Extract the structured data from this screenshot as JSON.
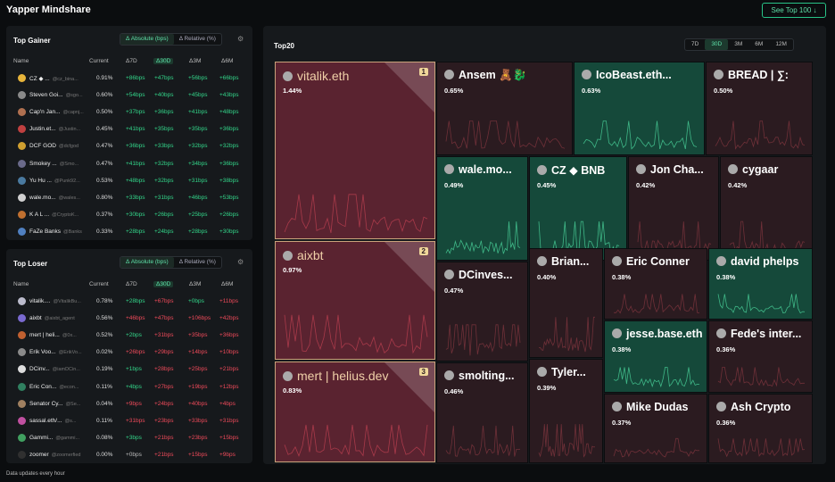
{
  "app": {
    "title": "Yapper Mindshare",
    "see_top": "See Top 100 ↓"
  },
  "gainer": {
    "title": "Top Gainer",
    "toggle": [
      "Δ Absolute (bps)",
      "Δ Relative (%)"
    ],
    "headers": [
      "Name",
      "Current",
      "Δ7D",
      "Δ30D",
      "Δ3M",
      "Δ6M"
    ],
    "rows": [
      {
        "name": "CZ ◆ ...",
        "handle": "@cz_bina...",
        "current": "0.91%",
        "d7": "+86bps",
        "d30": "+47bps",
        "d3m": "+56bps",
        "d6m": "+66bps",
        "color": "#e7b43a"
      },
      {
        "name": "Steven Goi...",
        "handle": "@sgo...",
        "current": "0.60%",
        "d7": "+54bps",
        "d30": "+40bps",
        "d3m": "+45bps",
        "d6m": "+43bps",
        "color": "#8a8a8a"
      },
      {
        "name": "Cap'n Jan...",
        "handle": "@capnj...",
        "current": "0.50%",
        "d7": "+37bps",
        "d30": "+36bps",
        "d3m": "+41bps",
        "d6m": "+48bps",
        "color": "#b07050"
      },
      {
        "name": "Justin.et...",
        "handle": "@Justin...",
        "current": "0.45%",
        "d7": "+41bps",
        "d30": "+35bps",
        "d3m": "+35bps",
        "d6m": "+36bps",
        "color": "#c04040"
      },
      {
        "name": "DCF GOD",
        "handle": "@dcfgod",
        "current": "0.47%",
        "d7": "+36bps",
        "d30": "+33bps",
        "d3m": "+32bps",
        "d6m": "+32bps",
        "color": "#d0a030"
      },
      {
        "name": "Smokey ...",
        "handle": "@Smo...",
        "current": "0.47%",
        "d7": "+41bps",
        "d30": "+32bps",
        "d3m": "+34bps",
        "d6m": "+36bps",
        "color": "#6a6a8a"
      },
      {
        "name": "Yu Hu ...",
        "handle": "@Punk92...",
        "current": "0.53%",
        "d7": "+48bps",
        "d30": "+32bps",
        "d3m": "+31bps",
        "d6m": "+38bps",
        "color": "#4a7aa0"
      },
      {
        "name": "wale.mo...",
        "handle": "@wales...",
        "current": "0.80%",
        "d7": "+33bps",
        "d30": "+31bps",
        "d3m": "+46bps",
        "d6m": "+53bps",
        "color": "#d0d0d0"
      },
      {
        "name": "K A L ...",
        "handle": "@CryptoK...",
        "current": "0.37%",
        "d7": "+30bps",
        "d30": "+26bps",
        "d3m": "+25bps",
        "d6m": "+26bps",
        "color": "#c07030"
      },
      {
        "name": "FaZe Banks",
        "handle": "@Banks",
        "current": "0.33%",
        "d7": "+28bps",
        "d30": "+24bps",
        "d3m": "+28bps",
        "d6m": "+30bps",
        "color": "#5080c0"
      }
    ]
  },
  "loser": {
    "title": "Top Loser",
    "toggle": [
      "Δ Absolute (bps)",
      "Δ Relative (%)"
    ],
    "headers": [
      "Name",
      "Current",
      "Δ7D",
      "Δ30D",
      "Δ3M",
      "Δ6M"
    ],
    "rows": [
      {
        "name": "vitalik....",
        "handle": "@VitalikBu...",
        "current": "0.78%",
        "d7": "+28bps",
        "d30": "+67bps",
        "d3m": "+0bps",
        "d6m": "+11bps",
        "s": [
          "pos",
          "neg",
          "pos",
          "neg"
        ],
        "color": "#bbbbcc"
      },
      {
        "name": "aixbt",
        "handle": "@aixbt_agent",
        "current": "0.56%",
        "d7": "+46bps",
        "d30": "+47bps",
        "d3m": "+106bps",
        "d6m": "+42bps",
        "s": [
          "neg",
          "neg",
          "neg",
          "neg"
        ],
        "color": "#7a6ad0"
      },
      {
        "name": "mert | heli...",
        "handle": "@0x...",
        "current": "0.52%",
        "d7": "+2bps",
        "d30": "+31bps",
        "d3m": "+35bps",
        "d6m": "+36bps",
        "s": [
          "pos",
          "neg",
          "neg",
          "neg"
        ],
        "color": "#c06030"
      },
      {
        "name": "Erik Voo...",
        "handle": "@ErikVo...",
        "current": "0.02%",
        "d7": "+26bps",
        "d30": "+29bps",
        "d3m": "+14bps",
        "d6m": "+10bps",
        "s": [
          "neg",
          "neg",
          "neg",
          "neg"
        ],
        "color": "#8a8a8a"
      },
      {
        "name": "DCinv...",
        "handle": "@iamDCin...",
        "current": "0.19%",
        "d7": "+1bps",
        "d30": "+28bps",
        "d3m": "+25bps",
        "d6m": "+21bps",
        "s": [
          "pos",
          "neg",
          "neg",
          "neg"
        ],
        "color": "#dddddd"
      },
      {
        "name": "Eric Con...",
        "handle": "@econ...",
        "current": "0.11%",
        "d7": "+4bps",
        "d30": "+27bps",
        "d3m": "+19bps",
        "d6m": "+12bps",
        "s": [
          "pos",
          "neg",
          "neg",
          "neg"
        ],
        "color": "#308060"
      },
      {
        "name": "Senator Cy...",
        "handle": "@Se...",
        "current": "0.04%",
        "d7": "+9bps",
        "d30": "+24bps",
        "d3m": "+40bps",
        "d6m": "+4bps",
        "s": [
          "neg",
          "neg",
          "neg",
          "neg"
        ],
        "color": "#a08060"
      },
      {
        "name": "sassal.eth/...",
        "handle": "@s...",
        "current": "0.11%",
        "d7": "+31bps",
        "d30": "+23bps",
        "d3m": "+33bps",
        "d6m": "+31bps",
        "s": [
          "neg",
          "neg",
          "neg",
          "neg"
        ],
        "color": "#c050a0"
      },
      {
        "name": "Gammi...",
        "handle": "@gammi...",
        "current": "0.08%",
        "d7": "+3bps",
        "d30": "+21bps",
        "d3m": "+23bps",
        "d6m": "+15bps",
        "s": [
          "pos",
          "neg",
          "neg",
          "neg"
        ],
        "color": "#40a060"
      },
      {
        "name": "zoomer",
        "handle": "@zoomerfied",
        "current": "0.00%",
        "d7": "+0bps",
        "d30": "+21bps",
        "d3m": "+15bps",
        "d6m": "+9bps",
        "s": [
          "neu",
          "neg",
          "neg",
          "neg"
        ],
        "color": "#303030"
      }
    ]
  },
  "footer": "Data updates every hour",
  "top20": {
    "title": "Top20",
    "periods": [
      "7D",
      "30D",
      "3M",
      "6M",
      "12M"
    ],
    "tiles": [
      {
        "name": "vitalik.eth",
        "pct": "1.44%",
        "rank": "1",
        "kind": "bigred"
      },
      {
        "name": "aixbt",
        "pct": "0.97%",
        "rank": "2",
        "kind": "bigred"
      },
      {
        "name": "mert | helius.dev",
        "pct": "0.83%",
        "rank": "3",
        "kind": "bigred"
      },
      {
        "name": "Ansem 🧸🐉",
        "pct": "0.65%",
        "kind": "red"
      },
      {
        "name": "IcoBeast.eth...",
        "pct": "0.63%",
        "kind": "green"
      },
      {
        "name": "BREAD | ∑:",
        "pct": "0.50%",
        "kind": "red"
      },
      {
        "name": "wale.mo...",
        "pct": "0.49%",
        "kind": "green"
      },
      {
        "name": "CZ ◆ BNB",
        "pct": "0.45%",
        "kind": "green"
      },
      {
        "name": "Jon Cha...",
        "pct": "0.42%",
        "kind": "red"
      },
      {
        "name": "cygaar",
        "pct": "0.42%",
        "kind": "red"
      },
      {
        "name": "DCinves...",
        "pct": "0.47%",
        "kind": "red"
      },
      {
        "name": "Brian...",
        "pct": "0.40%",
        "kind": "red"
      },
      {
        "name": "Eric Conner",
        "pct": "0.38%",
        "kind": "red"
      },
      {
        "name": "david phelps",
        "pct": "0.38%",
        "kind": "green"
      },
      {
        "name": "jesse.base.eth",
        "pct": "0.38%",
        "kind": "green"
      },
      {
        "name": "Fede's inter...",
        "pct": "0.36%",
        "kind": "red"
      },
      {
        "name": "smolting...",
        "pct": "0.46%",
        "kind": "red"
      },
      {
        "name": "Tyler...",
        "pct": "0.39%",
        "kind": "red"
      },
      {
        "name": "Mike Dudas",
        "pct": "0.37%",
        "kind": "red"
      },
      {
        "name": "Ash Crypto",
        "pct": "0.36%",
        "kind": "red"
      }
    ]
  }
}
